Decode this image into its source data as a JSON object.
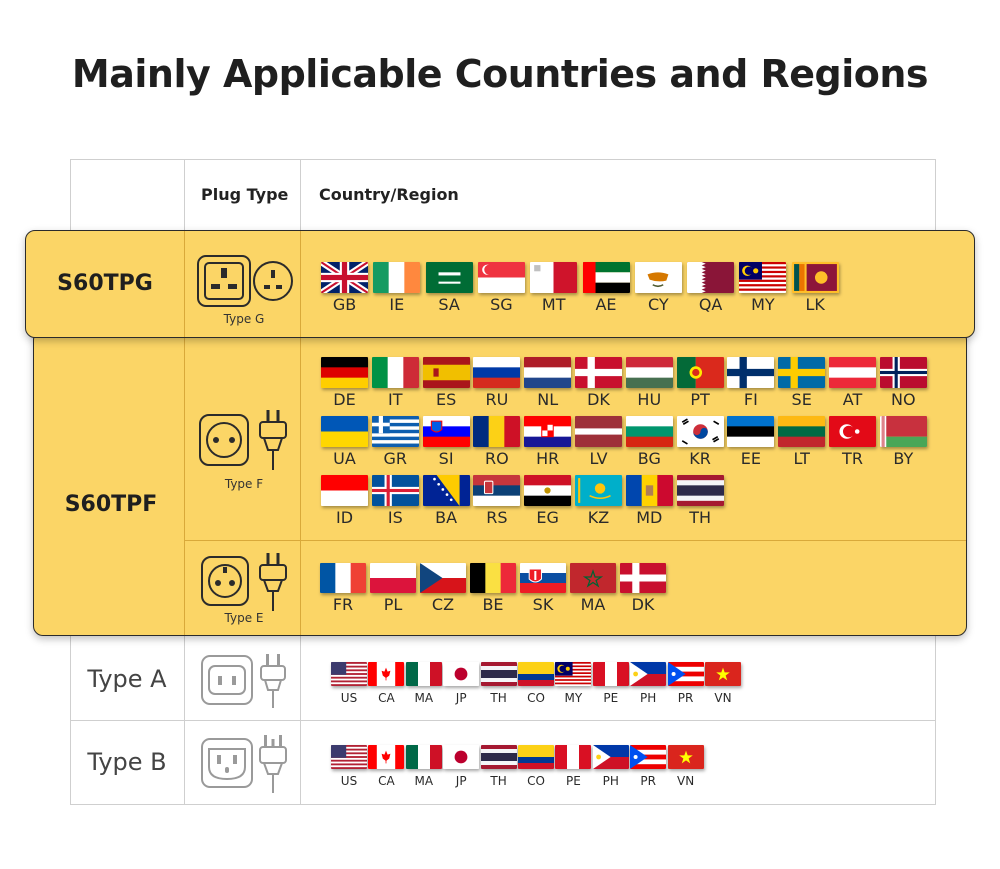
{
  "title": "Mainly Applicable Countries and Regions",
  "header": {
    "plug_type": "Plug Type",
    "country_region": "Country/Region"
  },
  "rows": {
    "s60tpg": {
      "model": "S60TPG",
      "plug_label": "Type G",
      "countries": [
        "GB",
        "IE",
        "SA",
        "SG",
        "MT",
        "AE",
        "CY",
        "QA",
        "MY",
        "LK"
      ]
    },
    "s60tpf": {
      "model": "S60TPF",
      "plug_f_label": "Type F",
      "countries_f": [
        "DE",
        "IT",
        "ES",
        "RU",
        "NL",
        "DK",
        "HU",
        "PT",
        "FI",
        "SE",
        "AT",
        "NO",
        "UA",
        "GR",
        "SI",
        "RO",
        "HR",
        "LV",
        "BG",
        "KR",
        "EE",
        "LT",
        "TR",
        "BY",
        "ID",
        "IS",
        "BA",
        "RS",
        "EG",
        "KZ",
        "MD",
        "TH"
      ],
      "plug_e_label": "Type E",
      "countries_e": [
        "FR",
        "PL",
        "CZ",
        "BE",
        "SK",
        "MA",
        "DK"
      ]
    },
    "type_a": {
      "title": "Type A",
      "countries": [
        "US",
        "CA",
        "MA",
        "JP",
        "TH",
        "CO",
        "MY",
        "PE",
        "PH",
        "PR",
        "VN"
      ]
    },
    "type_b": {
      "title": "Type B",
      "countries": [
        "US",
        "CA",
        "MA",
        "JP",
        "TH",
        "CO",
        "PE",
        "PH",
        "PR",
        "VN"
      ]
    }
  },
  "colors": {
    "band": "#fbd566",
    "band_border": "#2b2b2b",
    "grid": "#cfcfcf"
  }
}
